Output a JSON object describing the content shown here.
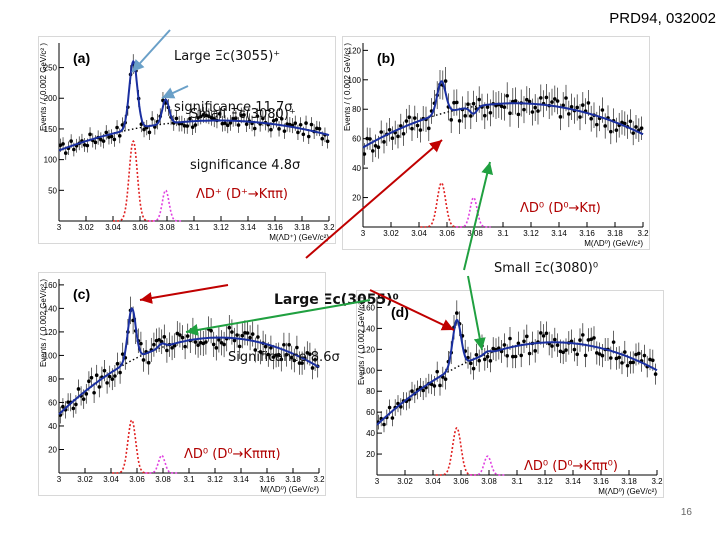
{
  "reference": "PRD94, 032002",
  "page_number": "16",
  "colors": {
    "fit": "#1a2fa0",
    "points": "#000000",
    "signal_red": "#e02020",
    "signal_pink": "#e040e0",
    "arrow_red": "#c00000",
    "arrow_green": "#20a040",
    "arrow_blue": "#6aa0c8"
  },
  "annotations": {
    "large_plus_line1": "Large Ξc(3055)⁺",
    "large_plus_line2": "significance 11.7σ",
    "small_plus_line1": "Small Ξc(3080)⁺",
    "small_plus_line2": "significance 4.8σ",
    "large_zero_line1": "Large Ξc(3055)⁰",
    "large_zero_line2": "Significance 8.6σ",
    "small_zero": "Small Ξc(3080)⁰",
    "mode_a": "ΛD⁺ (D⁺→Kππ)",
    "mode_b": "ΛD⁰ (D⁰→Kπ)",
    "mode_c": "ΛD⁰ (D⁰→Kπππ)",
    "mode_d": "ΛD⁰ (D⁰→Kππ⁰)"
  },
  "chart_data": [
    {
      "type": "scatter",
      "panel": "(a)",
      "xlabel": "M(ΛD⁺) (GeV/c²)",
      "ylabel": "Events / ( 0.002 GeV/c² )",
      "xlim": [
        3.0,
        3.2
      ],
      "ylim": [
        0,
        290
      ],
      "xticks": [
        3,
        3.02,
        3.04,
        3.06,
        3.08,
        3.1,
        3.12,
        3.14,
        3.16,
        3.18,
        3.2
      ],
      "yticks": [
        50,
        100,
        150,
        200,
        250
      ],
      "background": {
        "at_3_00": 115,
        "at_3_06": 152,
        "at_3_20": 140
      },
      "peaks": [
        {
          "mass": 3.055,
          "height": 260,
          "width": 0.003,
          "signal": 130
        },
        {
          "mass": 3.079,
          "height": 198,
          "width": 0.0025,
          "signal": 50
        }
      ]
    },
    {
      "type": "scatter",
      "panel": "(b)",
      "xlabel": "M(ΛD⁰) (GeV/c²)",
      "ylabel": "Events / ( 0.002 GeV/c² )",
      "xlim": [
        3.0,
        3.2
      ],
      "ylim": [
        0,
        125
      ],
      "xticks": [
        3,
        3.02,
        3.04,
        3.06,
        3.08,
        3.1,
        3.12,
        3.14,
        3.16,
        3.18,
        3.2
      ],
      "yticks": [
        20,
        40,
        60,
        80,
        100,
        120
      ],
      "background": {
        "at_3_00": 54,
        "at_3_06": 78,
        "at_3_20": 63
      },
      "peaks": [
        {
          "mass": 3.056,
          "height": 99,
          "width": 0.003,
          "signal": 30
        },
        {
          "mass": 3.079,
          "height": 77,
          "width": 0.0025,
          "signal": 20
        }
      ]
    },
    {
      "type": "scatter",
      "panel": "(c)",
      "xlabel": "M(ΛD⁰) (GeV/c²)",
      "ylabel": "Events / ( 0.002 GeV/c² )",
      "xlim": [
        3.0,
        3.2
      ],
      "ylim": [
        0,
        165
      ],
      "xticks": [
        3,
        3.02,
        3.04,
        3.06,
        3.08,
        3.1,
        3.12,
        3.14,
        3.16,
        3.18,
        3.2
      ],
      "yticks": [
        20,
        40,
        60,
        80,
        100,
        120,
        140,
        160
      ],
      "background": {
        "at_3_00": 50,
        "at_3_06": 98,
        "at_3_20": 90
      },
      "peaks": [
        {
          "mass": 3.056,
          "height": 140,
          "width": 0.003,
          "signal": 45
        },
        {
          "mass": 3.079,
          "height": 110,
          "width": 0.0025,
          "signal": 15
        }
      ]
    },
    {
      "type": "scatter",
      "panel": "(d)",
      "xlabel": "M(ΛD⁰) (GeV/c²)",
      "ylabel": "Events / ( 0.002 GeV/c² )",
      "xlim": [
        3.0,
        3.2
      ],
      "ylim": [
        0,
        170
      ],
      "xticks": [
        3,
        3.02,
        3.04,
        3.06,
        3.08,
        3.1,
        3.12,
        3.14,
        3.16,
        3.18,
        3.2
      ],
      "yticks": [
        20,
        40,
        60,
        80,
        100,
        120,
        140,
        160
      ],
      "background": {
        "at_3_00": 48,
        "at_3_06": 105,
        "at_3_20": 100
      },
      "peaks": [
        {
          "mass": 3.057,
          "height": 148,
          "width": 0.003,
          "signal": 45
        },
        {
          "mass": 3.079,
          "height": 118,
          "width": 0.0025,
          "signal": 18
        }
      ]
    }
  ]
}
